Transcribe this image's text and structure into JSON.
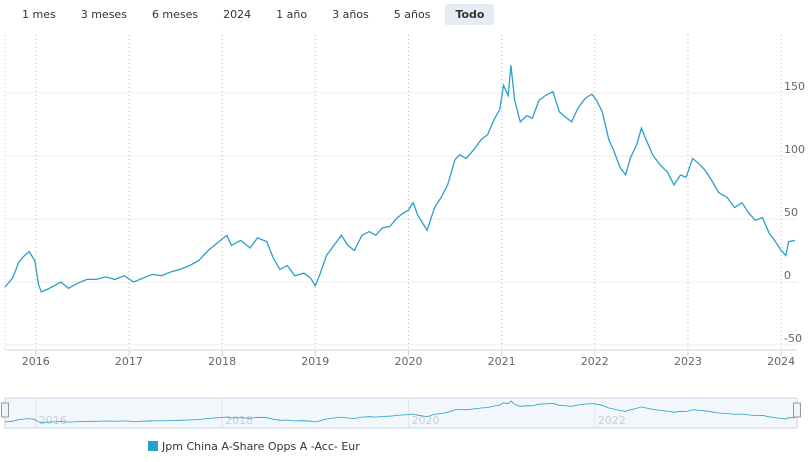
{
  "range_selector": {
    "buttons": [
      "1 mes",
      "3 meses",
      "6 meses",
      "2024",
      "1 año",
      "3 años",
      "5 años",
      "Todo"
    ],
    "selected": 7
  },
  "chart_data": {
    "type": "line",
    "series": [
      {
        "name": "Jpm China A-Share Opps A -Acc- Eur",
        "color": "#2a9fc9",
        "x": [
          2015.67,
          2015.75,
          2015.82,
          2015.88,
          2015.93,
          2015.99,
          2016.03,
          2016.06,
          2016.12,
          2016.2,
          2016.27,
          2016.35,
          2016.45,
          2016.55,
          2016.65,
          2016.75,
          2016.85,
          2016.95,
          2017.05,
          2017.15,
          2017.25,
          2017.35,
          2017.45,
          2017.55,
          2017.65,
          2017.75,
          2017.85,
          2017.95,
          2018.05,
          2018.1,
          2018.2,
          2018.3,
          2018.38,
          2018.48,
          2018.55,
          2018.62,
          2018.7,
          2018.78,
          2018.88,
          2018.95,
          2019.0,
          2019.05,
          2019.12,
          2019.2,
          2019.28,
          2019.35,
          2019.42,
          2019.5,
          2019.58,
          2019.65,
          2019.72,
          2019.8,
          2019.88,
          2019.95,
          2020.0,
          2020.05,
          2020.1,
          2020.2,
          2020.28,
          2020.35,
          2020.42,
          2020.5,
          2020.55,
          2020.62,
          2020.7,
          2020.78,
          2020.85,
          2020.92,
          2020.98,
          2021.02,
          2021.07,
          2021.1,
          2021.14,
          2021.2,
          2021.27,
          2021.33,
          2021.4,
          2021.47,
          2021.55,
          2021.62,
          2021.7,
          2021.75,
          2021.82,
          2021.9,
          2021.97,
          2022.02,
          2022.08,
          2022.15,
          2022.2,
          2022.27,
          2022.33,
          2022.38,
          2022.45,
          2022.5,
          2022.55,
          2022.62,
          2022.7,
          2022.78,
          2022.85,
          2022.92,
          2022.98,
          2023.05,
          2023.1,
          2023.18,
          2023.25,
          2023.33,
          2023.42,
          2023.5,
          2023.58,
          2023.65,
          2023.72,
          2023.8,
          2023.87,
          2023.93,
          2024.0,
          2024.05,
          2024.08,
          2024.15
        ],
        "values": [
          -4,
          3,
          16,
          21,
          24,
          17,
          -2,
          -8,
          -6,
          -3,
          0,
          -5,
          -1,
          2,
          2,
          4,
          2,
          5,
          0,
          3,
          6,
          5,
          8,
          10,
          13,
          17,
          25,
          31,
          37,
          29,
          33,
          27,
          35,
          32,
          19,
          10,
          13,
          5,
          7,
          3,
          -3,
          6,
          21,
          29,
          37,
          29,
          25,
          37,
          40,
          37,
          43,
          44,
          51,
          55,
          57,
          63,
          53,
          41,
          59,
          67,
          77,
          97,
          101,
          98,
          105,
          113,
          117,
          129,
          137,
          156,
          148,
          172,
          144,
          127,
          132,
          130,
          144,
          148,
          151,
          135,
          130,
          127,
          138,
          146,
          149,
          144,
          135,
          113,
          105,
          91,
          85,
          98,
          109,
          122,
          113,
          101,
          93,
          87,
          77,
          85,
          83,
          98,
          95,
          89,
          81,
          71,
          67,
          59,
          63,
          55,
          49,
          51,
          39,
          33,
          25,
          21,
          32,
          33
        ]
      }
    ],
    "xlim": [
      2015.67,
      2024.17
    ],
    "ylim": [
      -54,
      196
    ],
    "xticks": [
      2016,
      2017,
      2018,
      2019,
      2020,
      2021,
      2022,
      2023,
      2024
    ],
    "yticks": [
      -50,
      0,
      50,
      100,
      150
    ],
    "navigator_xticks": [
      2016,
      2018,
      2020,
      2022
    ],
    "xgrid": true
  }
}
